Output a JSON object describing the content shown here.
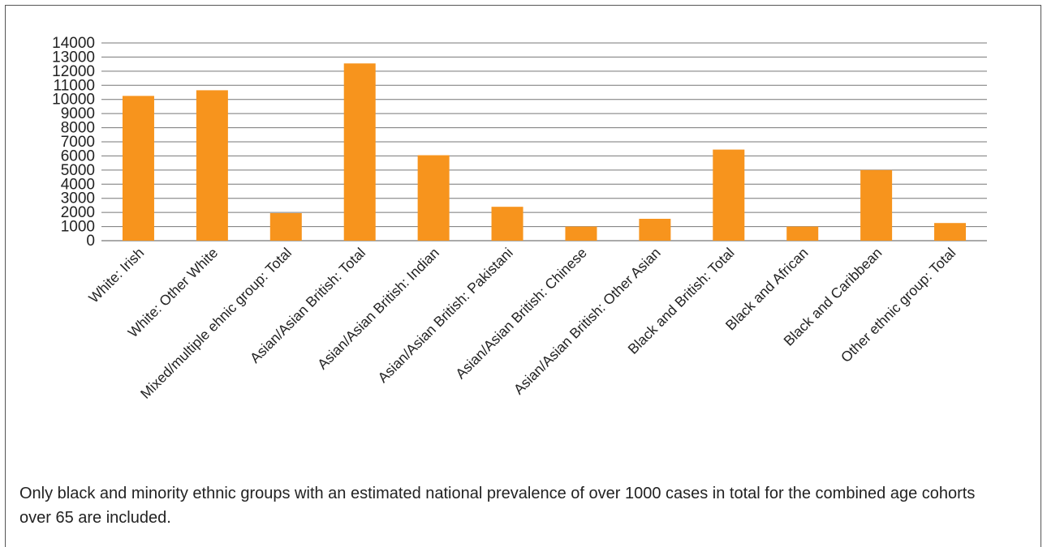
{
  "chart_data": {
    "type": "bar",
    "categories": [
      "White: Irish",
      "White: Other White",
      "Mixed/multiple ehnic group: Total",
      "Asian/Asian British: Total",
      "Asian/Asian British: Indian",
      "Asian/Asian British: Pakistani",
      "Asian/Asian British: Chinese",
      "Asian/Asian British: Other Asian",
      "Black and British: Total",
      "Black and African",
      "Black and Caribbean",
      "Other ethnic group: Total"
    ],
    "values": [
      10250,
      10650,
      1950,
      12550,
      6050,
      2400,
      1000,
      1550,
      6450,
      1000,
      5000,
      1250
    ],
    "ylim": [
      0,
      14000
    ],
    "yticks": [
      "0",
      "1000",
      "2000",
      "3000",
      "4000",
      "5000",
      "6000",
      "7000",
      "8000",
      "9000",
      "10000",
      "11000",
      "12000",
      "13000",
      "14000"
    ],
    "grid": true,
    "bar_color": "#F7941D",
    "title": "",
    "xlabel": "",
    "ylabel": ""
  },
  "note": "Only black and minority ethnic groups with an estimated national prevalence of over 1000 cases in total for the combined age cohorts over 65 are included."
}
